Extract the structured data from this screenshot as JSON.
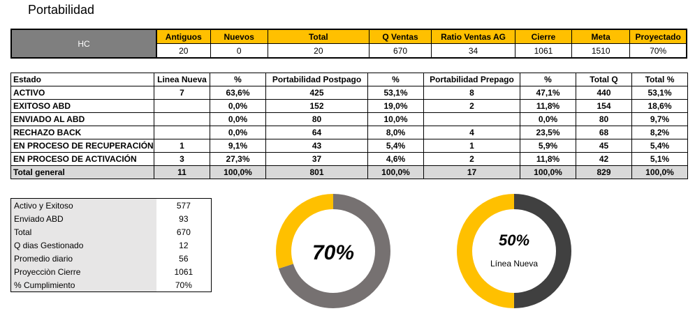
{
  "page": {
    "title": "Portabilidad"
  },
  "hc_table": {
    "row_label": "HC",
    "headers": [
      "Antiguos",
      "Nuevos",
      "Total",
      "Q Ventas",
      "Ratio Ventas AG",
      "Cierre",
      "Meta",
      "Proyectado"
    ],
    "values": [
      "20",
      "0",
      "20",
      "670",
      "34",
      "1061",
      "1510",
      "70%"
    ]
  },
  "estado_table": {
    "headers": [
      "Estado",
      "Linea Nueva",
      "%",
      "Portabilidad Postpago",
      "%",
      "Portabilidad Prepago",
      "%",
      "Total Q",
      "Total %"
    ],
    "rows": [
      [
        "ACTIVO",
        "7",
        "63,6%",
        "425",
        "53,1%",
        "8",
        "47,1%",
        "440",
        "53,1%"
      ],
      [
        "EXITOSO ABD",
        "",
        "0,0%",
        "152",
        "19,0%",
        "2",
        "11,8%",
        "154",
        "18,6%"
      ],
      [
        "ENVIADO AL ABD",
        "",
        "0,0%",
        "80",
        "10,0%",
        "",
        "0,0%",
        "80",
        "9,7%"
      ],
      [
        "RECHAZO BACK",
        "",
        "0,0%",
        "64",
        "8,0%",
        "4",
        "23,5%",
        "68",
        "8,2%"
      ],
      [
        "EN PROCESO DE RECUPERACIÓN",
        "1",
        "9,1%",
        "43",
        "5,4%",
        "1",
        "5,9%",
        "45",
        "5,4%"
      ],
      [
        "EN PROCESO DE ACTIVACIÓN",
        "3",
        "27,3%",
        "37",
        "4,6%",
        "2",
        "11,8%",
        "42",
        "5,1%"
      ]
    ],
    "total": [
      "Total general",
      "11",
      "100,0%",
      "801",
      "100,0%",
      "17",
      "100,0%",
      "829",
      "100,0%"
    ]
  },
  "summary": [
    {
      "label": "Activo y Exitoso",
      "value": "577"
    },
    {
      "label": "Enviado ABD",
      "value": "93"
    },
    {
      "label": "Total",
      "value": "670"
    },
    {
      "label": "Q dias Gestionado",
      "value": "12"
    },
    {
      "label": "Promedio diario",
      "value": "56"
    },
    {
      "label": "Proyecciòn Cierre",
      "value": "1061"
    },
    {
      "label": "% Cumplimiento",
      "value": "70%"
    }
  ],
  "donut_1": {
    "label": "70%",
    "fraction": 0.7,
    "fill_color": "#767171",
    "rest_color": "#ffc000"
  },
  "donut_2": {
    "label": "50%",
    "sublabel": "Línea Nueva",
    "fraction": 0.5,
    "fill_color": "#404040",
    "rest_color": "#ffc000"
  }
}
